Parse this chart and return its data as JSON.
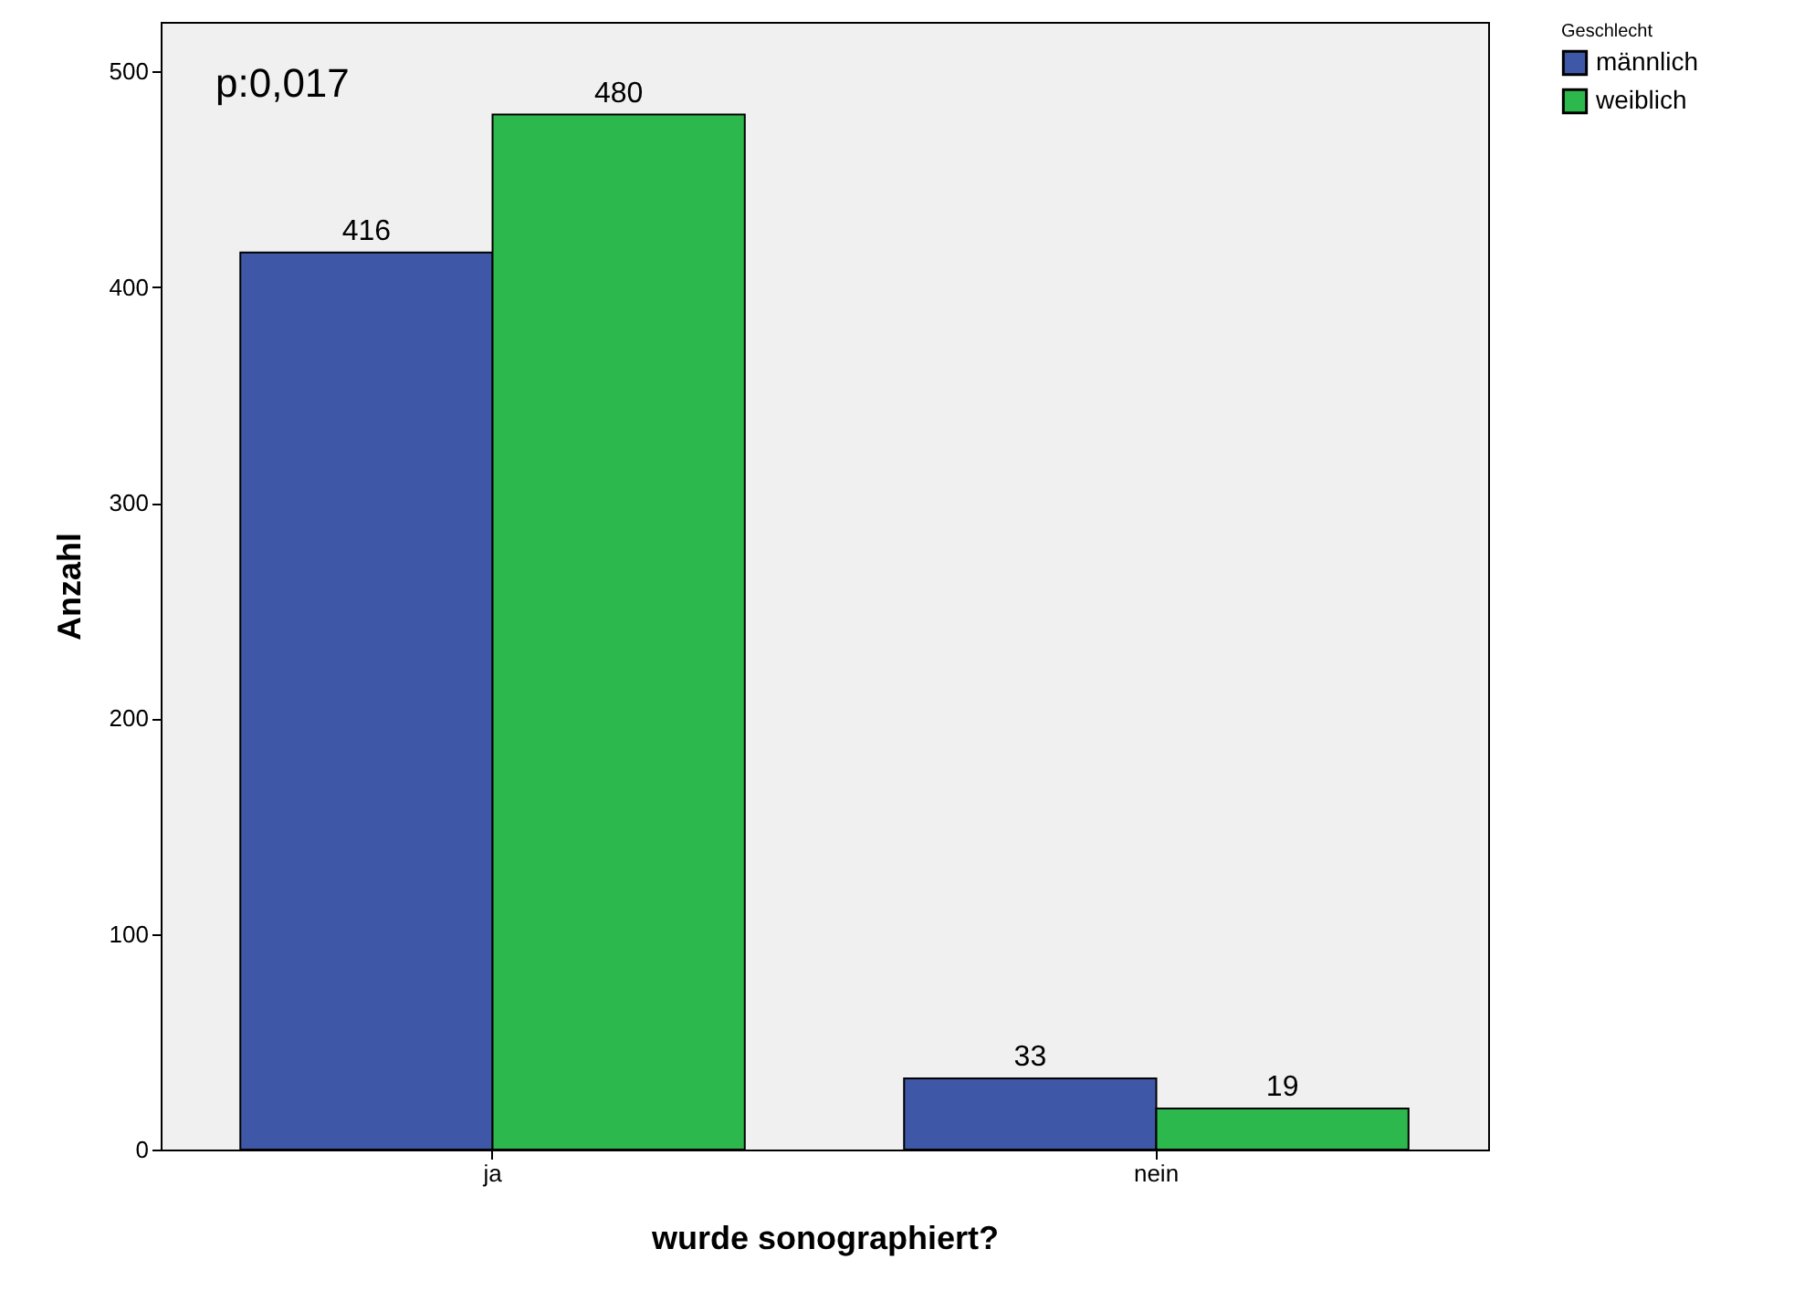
{
  "chart_data": {
    "type": "bar",
    "xlabel": "wurde sonographiert?",
    "ylabel": "Anzahl",
    "legend_title": "Geschlecht",
    "categories": [
      "ja",
      "nein"
    ],
    "series": [
      {
        "name": "männlich",
        "color": "#3f57a7",
        "values": [
          416,
          33
        ]
      },
      {
        "name": "weiblich",
        "color": "#2db84d",
        "values": [
          480,
          19
        ]
      }
    ],
    "ylim": [
      0,
      523
    ],
    "yticks": [
      0,
      100,
      200,
      300,
      400,
      500
    ],
    "grid": false,
    "legend": "right",
    "data_labels": true,
    "annotations": [
      "p:0,017"
    ]
  }
}
